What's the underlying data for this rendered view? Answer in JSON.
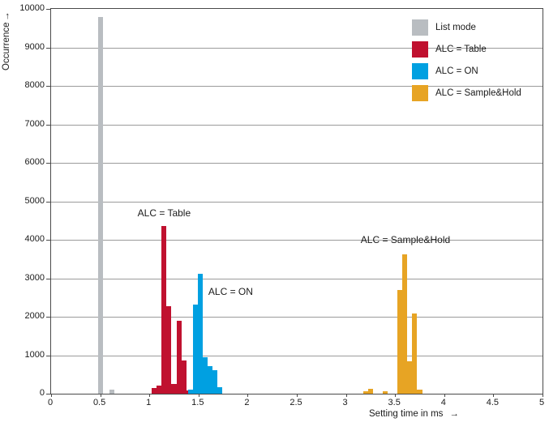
{
  "figure": {
    "ylabel": "Occurrence",
    "xlabel": "Setting time in ms",
    "arrow_glyph": "→"
  },
  "chart_data": {
    "type": "bar",
    "title": "",
    "xlabel": "Setting time in ms",
    "ylabel": "Occurrence",
    "xlim": [
      0,
      5
    ],
    "ylim": [
      0,
      10000
    ],
    "x_ticks": [
      "0",
      "0.5",
      "1",
      "1.5",
      "2",
      "2.5",
      "3",
      "3.5",
      "4",
      "4.5",
      "5"
    ],
    "y_ticks": [
      "0",
      "1000",
      "2000",
      "3000",
      "4000",
      "5000",
      "6000",
      "7000",
      "8000",
      "9000",
      "10000"
    ],
    "grid": "horizontal",
    "legend_position": "top-right",
    "bin_width_ms": 0.05,
    "series": [
      {
        "name": "List mode",
        "color": "#b9bdc1",
        "points": [
          {
            "x": 0.5,
            "y": 9790
          },
          {
            "x": 0.62,
            "y": 110
          }
        ]
      },
      {
        "name": "ALC = Table",
        "color": "#c0112f",
        "points": [
          {
            "x": 1.05,
            "y": 140
          },
          {
            "x": 1.1,
            "y": 210
          },
          {
            "x": 1.15,
            "y": 4350
          },
          {
            "x": 1.2,
            "y": 2270
          },
          {
            "x": 1.25,
            "y": 260
          },
          {
            "x": 1.3,
            "y": 1900
          },
          {
            "x": 1.35,
            "y": 870
          },
          {
            "x": 1.4,
            "y": 90
          }
        ]
      },
      {
        "name": "ALC = ON",
        "color": "#00a0e1",
        "points": [
          {
            "x": 1.42,
            "y": 110
          },
          {
            "x": 1.47,
            "y": 2320
          },
          {
            "x": 1.52,
            "y": 3110
          },
          {
            "x": 1.57,
            "y": 950
          },
          {
            "x": 1.62,
            "y": 710
          },
          {
            "x": 1.67,
            "y": 620
          },
          {
            "x": 1.72,
            "y": 160
          }
        ]
      },
      {
        "name": "ALC = Sample&Hold",
        "color": "#e7a424",
        "points": [
          {
            "x": 3.2,
            "y": 60
          },
          {
            "x": 3.25,
            "y": 130
          },
          {
            "x": 3.4,
            "y": 60
          },
          {
            "x": 3.55,
            "y": 2700
          },
          {
            "x": 3.6,
            "y": 3620
          },
          {
            "x": 3.65,
            "y": 840
          },
          {
            "x": 3.7,
            "y": 2080
          },
          {
            "x": 3.75,
            "y": 110
          }
        ]
      }
    ],
    "annotations": [
      {
        "text": "ALC = Table",
        "x": 0.88,
        "y": 4550
      },
      {
        "text": "ALC = ON",
        "x": 1.6,
        "y": 2500
      },
      {
        "text": "ALC = Sample&Hold",
        "x": 3.15,
        "y": 3850
      }
    ],
    "legend": [
      {
        "label": "List mode",
        "color": "#b9bdc1"
      },
      {
        "label": "ALC = Table",
        "color": "#c0112f"
      },
      {
        "label": "ALC = ON",
        "color": "#00a0e1"
      },
      {
        "label": "ALC = Sample&Hold",
        "color": "#e7a424"
      }
    ]
  }
}
